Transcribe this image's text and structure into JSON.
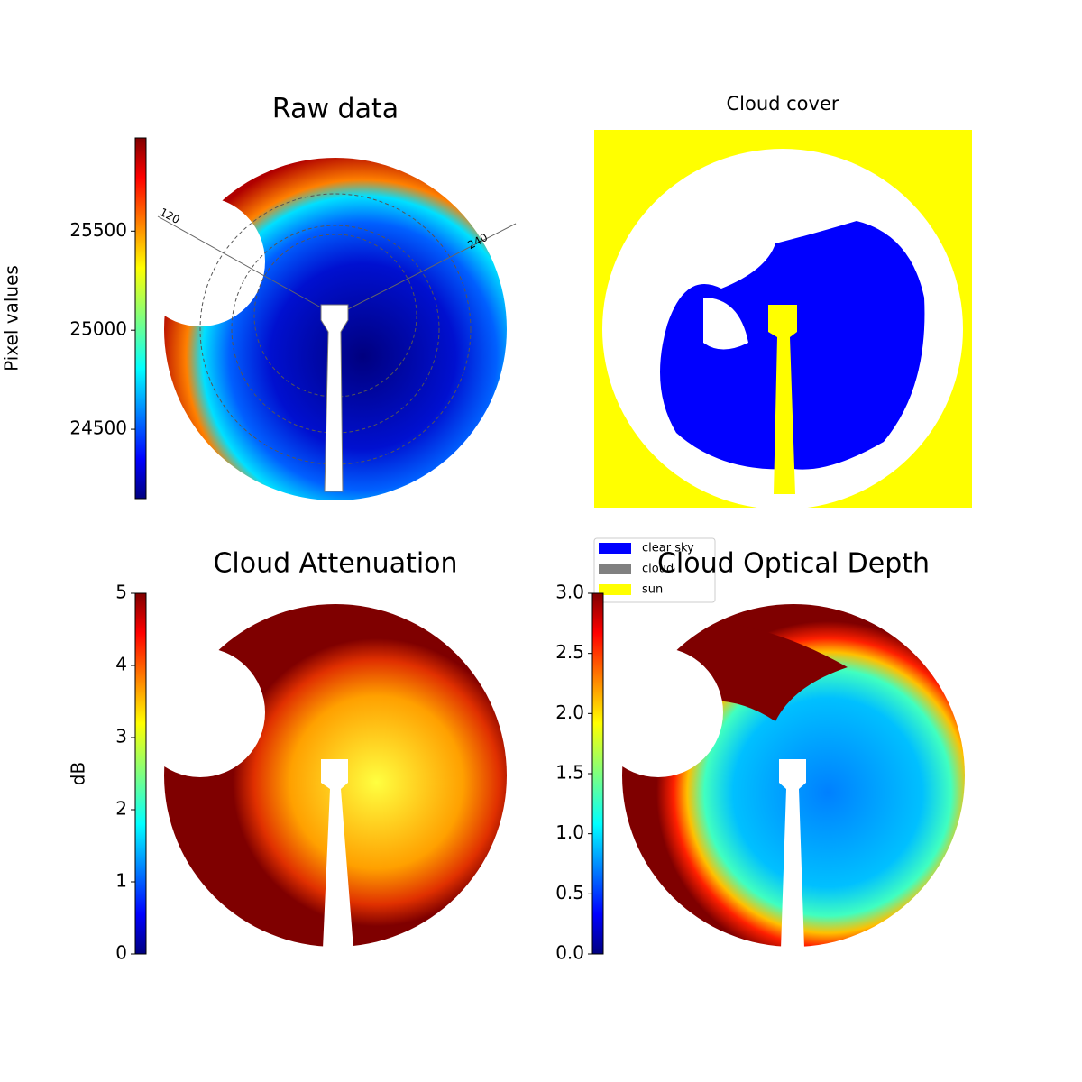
{
  "chart_data": [
    {
      "type": "image",
      "title": "Raw data",
      "colorbar_label": "Pixel values",
      "colormap": "jet",
      "clim": [
        24150,
        25970
      ],
      "cticks": [
        24500,
        25000,
        25500
      ],
      "annotations": [
        "120",
        "240"
      ]
    },
    {
      "type": "category-image",
      "title": "Cloud cover",
      "series": [
        {
          "name": "clear sky",
          "color": "#0000ff"
        },
        {
          "name": "cloud",
          "color": "#808080"
        },
        {
          "name": "sun",
          "color": "#ffff00"
        }
      ]
    },
    {
      "type": "image",
      "title": "Cloud Attenuation",
      "colorbar_label": "dB",
      "colormap": "jet",
      "clim": [
        0,
        5
      ],
      "cticks": [
        0,
        1,
        2,
        3,
        4,
        5
      ]
    },
    {
      "type": "image",
      "title": "Cloud Optical Depth",
      "colormap": "jet",
      "clim": [
        0,
        3
      ],
      "cticks": [
        {
          "value": 0,
          "label": "0.0"
        },
        {
          "value": 0.5,
          "label": "0.5"
        },
        {
          "value": 1,
          "label": "1.0"
        },
        {
          "value": 1.5,
          "label": "1.5"
        },
        {
          "value": 2,
          "label": "2.0"
        },
        {
          "value": 2.5,
          "label": "2.5"
        },
        {
          "value": 3,
          "label": "3.0"
        }
      ]
    }
  ]
}
